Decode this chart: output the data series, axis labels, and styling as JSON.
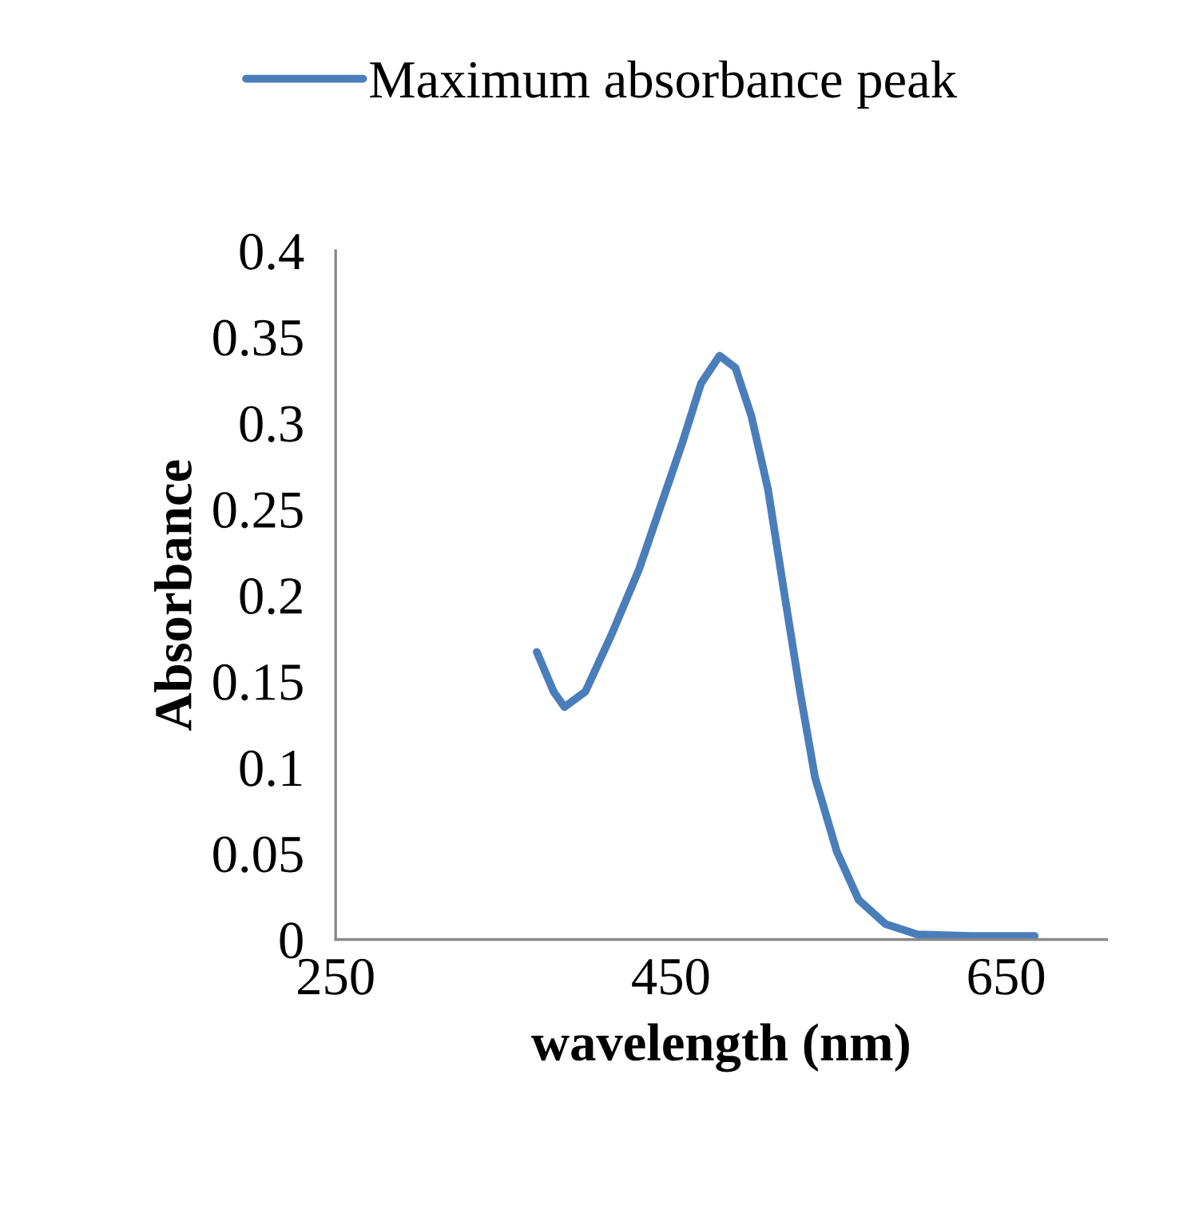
{
  "chart_data": {
    "type": "line",
    "xlabel": "wavelength (nm)",
    "ylabel": "Absorbance",
    "x": [
      370,
      380,
      386.5,
      399,
      415,
      431,
      444,
      457,
      468,
      479,
      488.5,
      498,
      508,
      517,
      527,
      536,
      549,
      562,
      578,
      597,
      629,
      667
    ],
    "series": [
      {
        "name": "Maximum absorbance peak",
        "color": "#4a7ebb",
        "values": [
          0.167,
          0.144,
          0.135,
          0.144,
          0.178,
          0.215,
          0.252,
          0.289,
          0.323,
          0.339,
          0.332,
          0.304,
          0.261,
          0.205,
          0.144,
          0.094,
          0.051,
          0.023,
          0.009,
          0.003,
          0.002,
          0.002
        ]
      }
    ],
    "xlim": [
      250,
      710
    ],
    "xticks": [
      250,
      450,
      650
    ],
    "ylim": [
      0,
      0.4
    ],
    "yticks": [
      0,
      0.05,
      0.1,
      0.15,
      0.2,
      0.25,
      0.3,
      0.35,
      0.4
    ],
    "grid": false,
    "legend": "top",
    "marker": "none",
    "line_style": "solid"
  }
}
